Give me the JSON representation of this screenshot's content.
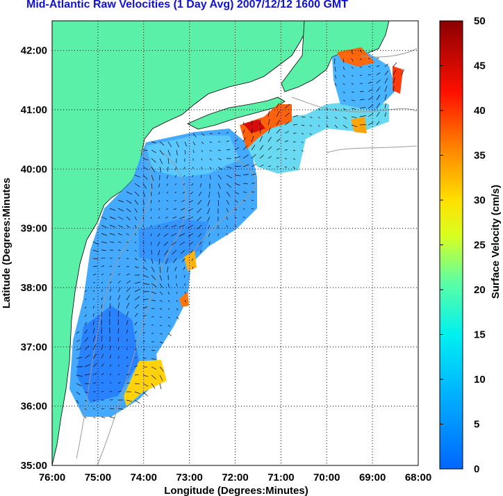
{
  "title": "Mid-Atlantic Raw Velocities (1 Day Avg) 2007/12/12 1600 GMT",
  "map": {
    "xlabel": "Longitude (Degrees:Minutes)",
    "ylabel": "Latitude (Degrees:Minutes",
    "lon_ticks": [
      "76:00",
      "75:00",
      "74:00",
      "73:00",
      "72:00",
      "71:00",
      "70:00",
      "69:00",
      "68:00"
    ],
    "lat_ticks": [
      "42:00",
      "41:00",
      "40:00",
      "39:00",
      "38:00",
      "37:00",
      "36:00",
      "35:00"
    ],
    "lon_range": [
      -76,
      -68
    ],
    "lat_range": [
      35,
      42.5
    ],
    "grid": "dotted",
    "land_color": "#5af0a8",
    "water_color": "#ffffff"
  },
  "colorbar": {
    "label": "Surface Velocity (cm/s)",
    "ticks": [
      "50",
      "45",
      "40",
      "35",
      "30",
      "25",
      "20",
      "15",
      "10",
      "5",
      "0"
    ],
    "range": [
      0,
      50
    ],
    "colormap": "jet"
  }
}
